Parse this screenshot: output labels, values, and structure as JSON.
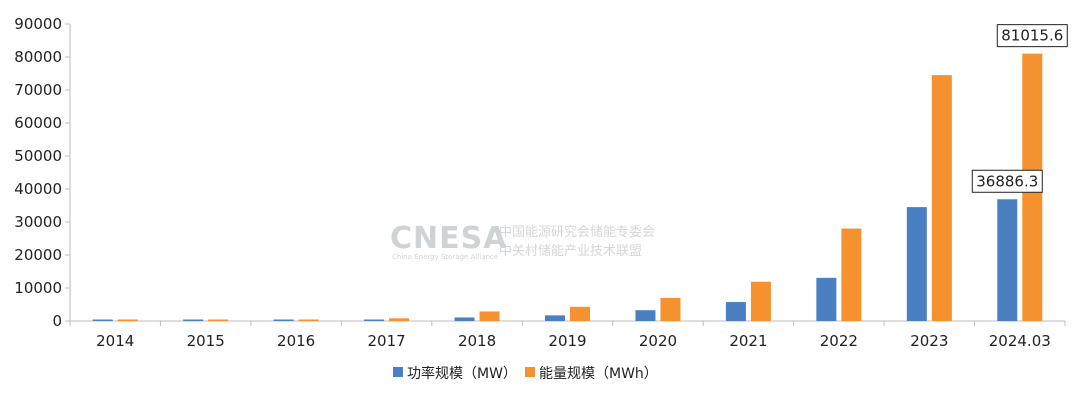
{
  "watermark": {
    "logo": "CNESA",
    "logo_sub": "China Energy Storage Alliance",
    "line1": "中国能源研究会储能专委会",
    "line2": "中关村储能产业技术联盟"
  },
  "colors": {
    "series_power": "#4a7fc1",
    "series_energy": "#f5912e",
    "axis": "#bdbdbd",
    "text": "#222222"
  },
  "chart_data": {
    "type": "bar",
    "title": "",
    "xlabel": "",
    "ylabel": "",
    "ylim": [
      0,
      90000
    ],
    "yticks": [
      0,
      10000,
      20000,
      30000,
      40000,
      50000,
      60000,
      70000,
      80000,
      90000
    ],
    "grid": false,
    "legend_position": "bottom-center",
    "categories": [
      "2014",
      "2015",
      "2016",
      "2017",
      "2018",
      "2019",
      "2020",
      "2021",
      "2022",
      "2023",
      "2024.03"
    ],
    "series": [
      {
        "name": "功率规模（MW）",
        "color": "#4a7fc1",
        "values": [
          100,
          110,
          220,
          390,
          1070,
          1710,
          3270,
          5730,
          13080,
          34510,
          36886.3
        ]
      },
      {
        "name": "能量规模（MWh）",
        "color": "#f5912e",
        "values": [
          200,
          240,
          420,
          800,
          2900,
          4300,
          7000,
          11900,
          28000,
          74500,
          81015.6
        ]
      }
    ],
    "annotations": [
      {
        "text": "36886.3",
        "series": 0,
        "category": "2024.03"
      },
      {
        "text": "81015.6",
        "series": 1,
        "category": "2024.03"
      }
    ]
  }
}
